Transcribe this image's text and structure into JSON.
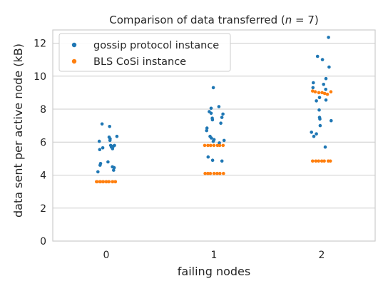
{
  "chart_data": {
    "type": "scatter",
    "subtype": "strip",
    "title_prefix": "Comparison of data transferred (",
    "title_math": "n",
    "title_suffix": " = 7)",
    "xlabel": "failing nodes",
    "ylabel": "data sent per active node (kB)",
    "categories": [
      "0",
      "1",
      "2"
    ],
    "ylim": [
      0,
      12.8
    ],
    "yticks": [
      0,
      2,
      4,
      6,
      8,
      10,
      12
    ],
    "grid": true,
    "legend_position": "top-left",
    "series": [
      {
        "name": "gossip protocol instance",
        "color": "#1f77b4",
        "values": [
          [
            6.95,
            7.1,
            6.3,
            6.35,
            6.2,
            6.1,
            6.05,
            5.8,
            5.8,
            5.75,
            5.7,
            5.65,
            5.6,
            5.55,
            4.8,
            4.7,
            4.6,
            4.5,
            4.45,
            4.3,
            4.2
          ],
          [
            9.3,
            8.15,
            8.05,
            7.85,
            7.75,
            7.7,
            7.5,
            7.45,
            7.35,
            7.15,
            6.85,
            6.7,
            6.35,
            6.25,
            6.15,
            6.1,
            6.05,
            5.95,
            5.1,
            4.9,
            4.85
          ],
          [
            12.35,
            11.2,
            11.0,
            10.55,
            9.85,
            9.6,
            9.5,
            9.3,
            9.2,
            8.7,
            8.55,
            8.5,
            7.95,
            7.5,
            7.4,
            7.3,
            7.0,
            6.6,
            6.5,
            6.35,
            5.7
          ]
        ]
      },
      {
        "name": "BLS CoSi instance",
        "color": "#ff7f0e",
        "values": [
          [
            3.6,
            3.6,
            3.6,
            3.6,
            3.6,
            3.6,
            3.6,
            3.6,
            3.6,
            3.6,
            3.6,
            3.6,
            3.6,
            3.6
          ],
          [
            5.8,
            5.8,
            5.8,
            5.8,
            5.8,
            5.8,
            5.8,
            4.1,
            4.1,
            4.1,
            4.1,
            4.1,
            4.1,
            4.1
          ],
          [
            9.1,
            9.05,
            9.0,
            9.0,
            8.95,
            8.9,
            9.05,
            4.85,
            4.85,
            4.85,
            4.85,
            4.85,
            4.85,
            4.85
          ]
        ]
      }
    ]
  }
}
